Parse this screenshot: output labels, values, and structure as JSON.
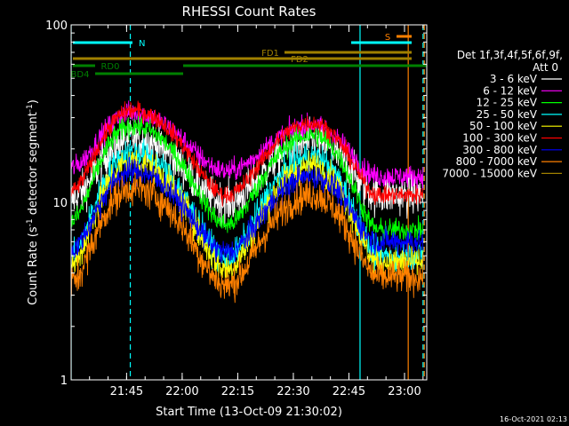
{
  "chart_data": {
    "type": "line",
    "title": "RHESSI Count Rates",
    "xlabel": "Start Time (13-Oct-09 21:30:02)",
    "ylabel_main": "Count Rate (s",
    "ylabel_sup": "-1",
    "ylabel_mid": " detector segment",
    "ylabel_end": ")",
    "y_scale": "log",
    "ylim": [
      1,
      100
    ],
    "xlim": [
      "21:30:02",
      "23:06:00"
    ],
    "x_ticks": [
      "21:45",
      "22:00",
      "22:15",
      "22:30",
      "22:45",
      "23:00"
    ],
    "y_ticks": [
      "1",
      "10",
      "100"
    ],
    "legend_title_1": "Det 1f,3f,4f,5f,6f,9f,",
    "legend_title_2": "Att 0",
    "legend_placement": "right",
    "series": [
      {
        "name": "3 - 6 keV",
        "color": "#ffffff",
        "peak1": 23,
        "trough": 10,
        "peak2": 22,
        "end": 11,
        "noise": 0.11
      },
      {
        "name": "6 - 12 keV",
        "color": "#ff00ff",
        "peak1": 32,
        "trough": 15,
        "peak2": 27,
        "end": 14,
        "noise": 0.06
      },
      {
        "name": "12 - 25 keV",
        "color": "#00ff00",
        "peak1": 27,
        "trough": 7.5,
        "peak2": 24,
        "end": 7,
        "noise": 0.06
      },
      {
        "name": "25 - 50 keV",
        "color": "#00ffff",
        "peak1": 19,
        "trough": 4.8,
        "peak2": 18,
        "end": 5,
        "noise": 0.08
      },
      {
        "name": "50 - 100 keV",
        "color": "#ffff00",
        "peak1": 17,
        "trough": 4.2,
        "peak2": 16,
        "end": 4.6,
        "noise": 0.08
      },
      {
        "name": "100 - 300 keV",
        "color": "#ff0000",
        "peak1": 33,
        "trough": 11,
        "peak2": 28,
        "end": 11,
        "noise": 0.05
      },
      {
        "name": "300 - 800 keV",
        "color": "#0000ff",
        "peak1": 15,
        "trough": 5.2,
        "peak2": 14,
        "end": 6,
        "noise": 0.07
      },
      {
        "name": "800 - 7000 keV",
        "color": "#ff8000",
        "peak1": 12,
        "trough": 3.4,
        "peak2": 11,
        "end": 3.8,
        "noise": 0.09
      },
      {
        "name": "7000 - 15000 keV",
        "color": "#a08000",
        "peak1": null,
        "trough": null,
        "peak2": null,
        "end": null,
        "noise": 0
      }
    ],
    "flag_bars": [
      {
        "label": "N",
        "color": "#00ffff",
        "segments": [
          [
            "21:30:02",
            "21:46:00"
          ],
          [
            "22:48:00",
            "23:06:00"
          ]
        ]
      },
      {
        "label": "S",
        "color": "#ff8000",
        "segments": [
          [
            "23:01:00",
            "23:06:00"
          ]
        ]
      },
      {
        "label": "FD1",
        "color": "#a08000",
        "segments": [
          [
            "22:30:00",
            "23:06:00"
          ]
        ]
      },
      {
        "label": "FD2",
        "color": "#a08000",
        "segments": [
          [
            "21:30:02",
            "23:06:00"
          ]
        ]
      },
      {
        "label": "RD0",
        "color": "#008000",
        "segments": [
          [
            "21:30:02",
            "21:36:00"
          ],
          [
            "22:02:00",
            "23:06:00"
          ]
        ]
      },
      {
        "label": "BD4",
        "color": "#008000",
        "segments": [
          [
            "21:36:00",
            "22:02:00"
          ]
        ]
      }
    ],
    "vertical_markers": [
      {
        "time": "21:30:02",
        "color": "#00ffff",
        "style": "solid"
      },
      {
        "time": "21:46:00",
        "color": "#00ffff",
        "style": "dashed"
      },
      {
        "time": "22:48:00",
        "color": "#00ffff",
        "style": "solid"
      },
      {
        "time": "23:01:00",
        "color": "#ff8000",
        "style": "solid"
      },
      {
        "time": "23:05:00",
        "color": "#00ffff",
        "style": "dashed"
      },
      {
        "time": "23:05:20",
        "color": "#ff8000",
        "style": "dashed"
      }
    ]
  },
  "footer_date": "16-Oct-2021 02:13"
}
